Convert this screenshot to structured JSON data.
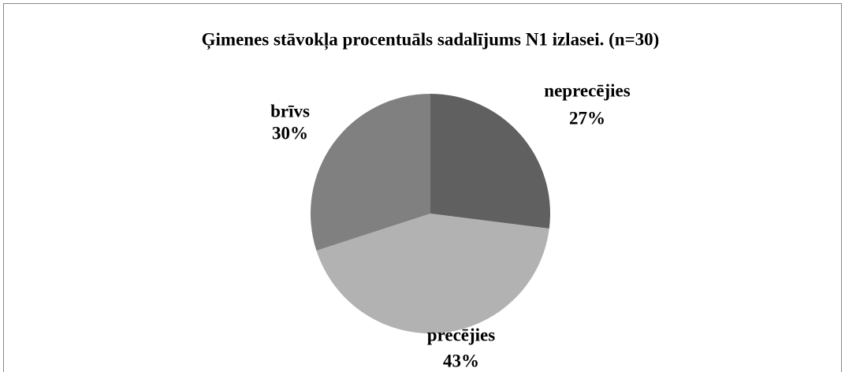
{
  "chart_data": {
    "type": "pie",
    "title": "Ģimenes stāvokļa procentuāls sadalījums N1 izlasei. (n=30)",
    "categories": [
      "neprecējies",
      "precējies",
      "brīvs"
    ],
    "values": [
      27,
      43,
      30
    ],
    "value_labels": [
      "27%",
      "43%",
      "30%"
    ],
    "colors": [
      "#606060",
      "#b2b2b2",
      "#808080"
    ]
  }
}
